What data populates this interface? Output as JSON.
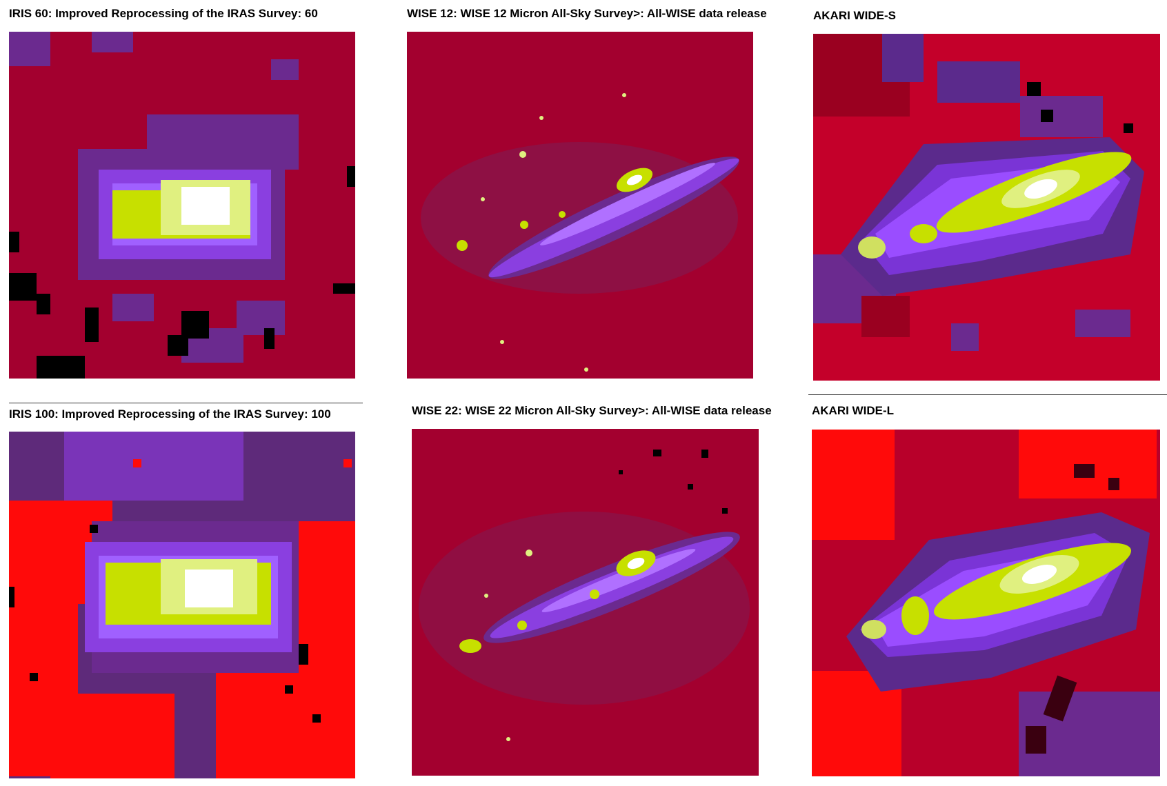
{
  "panels": [
    {
      "title": "IRIS 60: Improved Reprocessing of the IRAS Survey: 60",
      "image": "iris-60-map"
    },
    {
      "title": "WISE 12: WISE 12 Micron All-Sky Survey>: All-WISE data release",
      "image": "wise-12-map"
    },
    {
      "title": "AKARI WIDE-S",
      "image": "akari-wide-s-map"
    },
    {
      "title": "IRIS 100: Improved Reprocessing of the IRAS Survey: 100",
      "image": "iris-100-map"
    },
    {
      "title": "WISE 22: WISE 22 Micron All-Sky Survey>: All-WISE data release",
      "image": "wise-22-map"
    },
    {
      "title": "AKARI WIDE-L",
      "image": "akari-wide-l-map"
    }
  ],
  "colors": {
    "background": "#a3002f",
    "bright_red": "#ff0a0a",
    "purple_dark": "#5b2a8c",
    "purple": "#7a34d6",
    "violet": "#9a4dff",
    "yellow_green": "#d7f000",
    "white_core": "#ffffff"
  }
}
